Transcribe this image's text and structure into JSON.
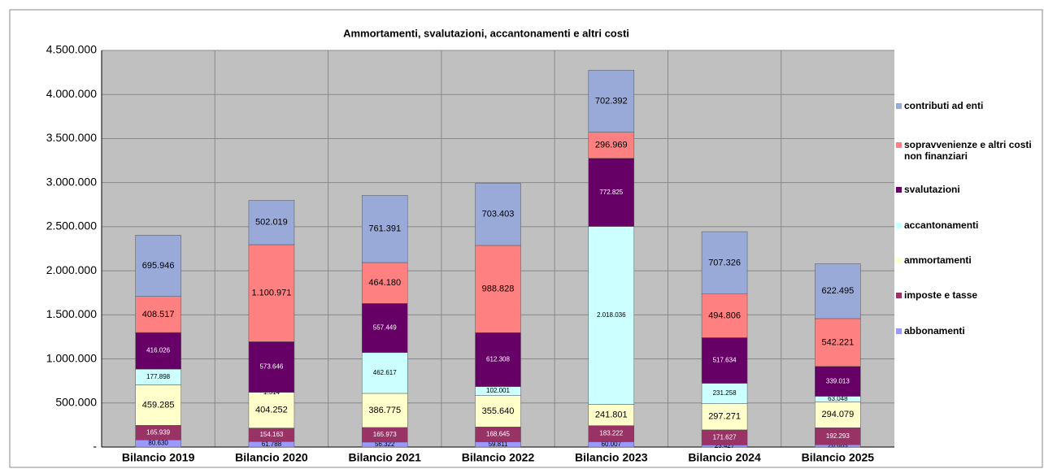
{
  "chart_data": {
    "type": "stacked_bar",
    "title": "Ammortamenti, svalutazioni, accantonamenti e altri costi",
    "categories": [
      "Bilancio 2019",
      "Bilancio 2020",
      "Bilancio 2021",
      "Bilancio 2022",
      "Bilancio 2023",
      "Bilancio 2024",
      "Bilancio 2025"
    ],
    "series": [
      {
        "name": "abbonamenti",
        "color": "#9999ff",
        "values": [
          80630,
          61788,
          56322,
          59811,
          60007,
          23427,
          26665
        ],
        "value_labels": [
          "80.630",
          "61.788",
          "56.322",
          "59.811",
          "60.007",
          "23.427",
          "26.665"
        ]
      },
      {
        "name": "imposte e tasse",
        "color": "#993366",
        "values": [
          165939,
          154163,
          165973,
          168645,
          183222,
          171627,
          192293
        ],
        "value_labels": [
          "165.939",
          "154.163",
          "165.973",
          "168.645",
          "183.222",
          "171.627",
          "192.293"
        ]
      },
      {
        "name": "ammortamenti",
        "color": "#ffffcc",
        "values": [
          459285,
          404252,
          386775,
          355640,
          241801,
          297271,
          294079
        ],
        "value_labels": [
          "459.285",
          "404.252",
          "386.775",
          "355.640",
          "241.801",
          "297.271",
          "294.079"
        ]
      },
      {
        "name": "accantonamenti",
        "color": "#ccffff",
        "values": [
          177898,
          1514,
          462617,
          102001,
          2018036,
          231258,
          63048
        ],
        "value_labels": [
          "177.898",
          "1.514",
          "462.617",
          "102.001",
          "2.018.036",
          "231.258",
          "63.048"
        ]
      },
      {
        "name": "svalutazioni",
        "color": "#660066",
        "values": [
          416026,
          573646,
          557449,
          612308,
          772825,
          517634,
          339013
        ],
        "value_labels": [
          "416.026",
          "573.646",
          "557.449",
          "612.308",
          "772.825",
          "517.634",
          "339.013"
        ]
      },
      {
        "name": "sopravvenienze e altri costi non finanziari",
        "color": "#ff8080",
        "values": [
          408517,
          1100971,
          464180,
          988828,
          296969,
          494806,
          542221
        ],
        "value_labels": [
          "408.517",
          "1.100.971",
          "464.180",
          "988.828",
          "296.969",
          "494.806",
          "542.221"
        ]
      },
      {
        "name": "contributi ad enti",
        "color": "#99aad8",
        "values": [
          695946,
          502019,
          761391,
          703403,
          702392,
          707326,
          622495
        ],
        "value_labels": [
          "695.946",
          "502.019",
          "761.391",
          "703.403",
          "702.392",
          "707.326",
          "622.495"
        ]
      }
    ],
    "ylim": [
      0,
      4500000
    ],
    "yticks": [
      {
        "value": 0,
        "label": "-"
      },
      {
        "value": 500000,
        "label": "500.000"
      },
      {
        "value": 1000000,
        "label": "1.000.000"
      },
      {
        "value": 1500000,
        "label": "1.500.000"
      },
      {
        "value": 2000000,
        "label": "2.000.000"
      },
      {
        "value": 2500000,
        "label": "2.500.000"
      },
      {
        "value": 3000000,
        "label": "3.000.000"
      },
      {
        "value": 3500000,
        "label": "3.500.000"
      },
      {
        "value": 4000000,
        "label": "4.000.000"
      },
      {
        "value": 4500000,
        "label": "4.500.000"
      }
    ],
    "grid": true,
    "legend": "right",
    "plot_background": "#c0c0c0"
  }
}
